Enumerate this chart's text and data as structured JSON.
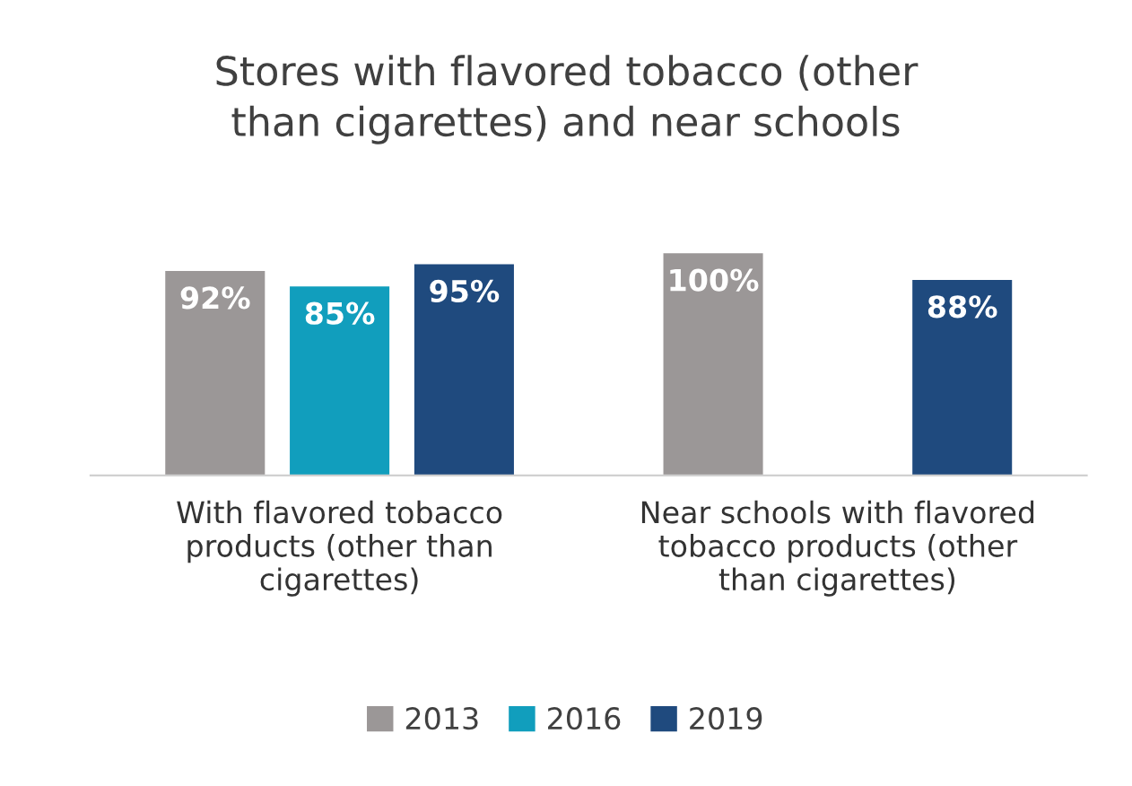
{
  "chart_data": {
    "type": "bar",
    "title": "Stores with flavored tobacco (other\nthan cigarettes) and near schools",
    "categories": [
      "With flavored tobacco\nproducts (other than\ncigarettes)",
      "Near schools with flavored\ntobacco products (other\nthan cigarettes)"
    ],
    "series": [
      {
        "name": "2013",
        "color": "#9b9797",
        "values": [
          92,
          100
        ],
        "value_labels": [
          "92%",
          "100%"
        ]
      },
      {
        "name": "2016",
        "color": "#119ebd",
        "values": [
          85,
          null
        ],
        "value_labels": [
          "85%",
          null
        ]
      },
      {
        "name": "2019",
        "color": "#1f4a7e",
        "values": [
          95,
          88
        ],
        "value_labels": [
          "95%",
          "88%"
        ]
      }
    ],
    "tick_labels": "x",
    "grid": false,
    "legend": "bottom"
  }
}
